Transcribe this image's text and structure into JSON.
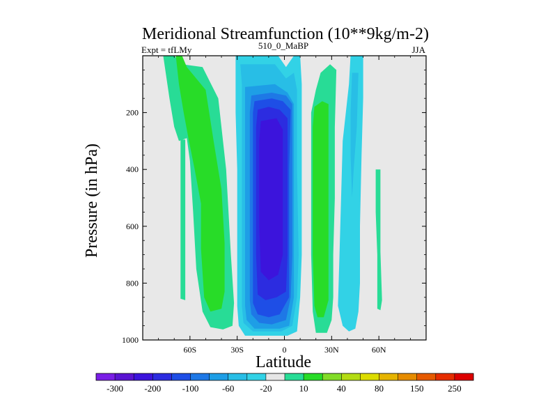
{
  "chart_data": {
    "type": "heatmap",
    "title": "Meridional Streamfunction (10**9kg/m-2)",
    "subtitle_left": "Expt = tfLMy",
    "subtitle_center": "510_0_MaBP",
    "subtitle_right": "JJA",
    "xlabel": "Latitude",
    "ylabel": "Pressure (in hPa)",
    "xlim": [
      -90,
      90
    ],
    "ylim": [
      0,
      1000
    ],
    "y_inverted": true,
    "x_ticks": [
      {
        "value": -60,
        "label": "60S"
      },
      {
        "value": -30,
        "label": "30S"
      },
      {
        "value": 0,
        "label": "0"
      },
      {
        "value": 30,
        "label": "30N"
      },
      {
        "value": 60,
        "label": "60N"
      }
    ],
    "y_ticks": [
      {
        "value": 200,
        "label": "200"
      },
      {
        "value": 400,
        "label": "400"
      },
      {
        "value": 600,
        "label": "600"
      },
      {
        "value": 800,
        "label": "800"
      },
      {
        "value": 1000,
        "label": "1000"
      }
    ],
    "background_color": "#e8e8e8",
    "colorbar": {
      "colors": [
        "#7a1ee6",
        "#5a14d2",
        "#3c14dc",
        "#2c2ce0",
        "#1e4ee6",
        "#1e78e6",
        "#1e9ee6",
        "#28bee6",
        "#32d2e6",
        "#e6e6e6",
        "#28dc96",
        "#28dc28",
        "#82dc28",
        "#b4dc14",
        "#dcdc00",
        "#e6b400",
        "#e68c00",
        "#e65a00",
        "#e62d00",
        "#dc0000"
      ],
      "labels": [
        "-300",
        "-200",
        "-100",
        "-60",
        "-20",
        "10",
        "40",
        "80",
        "150",
        "250"
      ]
    },
    "regions": [
      {
        "name": "southern-green-band-outer",
        "color": "#28dc96",
        "poly": [
          [
            -77,
            0
          ],
          [
            -70,
            0
          ],
          [
            -65,
            30
          ],
          [
            -52,
            40
          ],
          [
            -42,
            150
          ],
          [
            -37,
            400
          ],
          [
            -34,
            700
          ],
          [
            -32,
            870
          ],
          [
            -33,
            950
          ],
          [
            -39,
            963
          ],
          [
            -47,
            955
          ],
          [
            -52,
            900
          ],
          [
            -56,
            750
          ],
          [
            -58,
            550
          ],
          [
            -60,
            370
          ],
          [
            -62,
            290
          ],
          [
            -67,
            300
          ],
          [
            -70,
            250
          ],
          [
            -73,
            150
          ]
        ]
      },
      {
        "name": "southern-narrow-tongue",
        "color": "#28dc96",
        "poly": [
          [
            -66,
            295
          ],
          [
            -63,
            295
          ],
          [
            -63,
            860
          ],
          [
            -66,
            855
          ]
        ]
      },
      {
        "name": "southern-green-core",
        "color": "#28dc28",
        "poly": [
          [
            -69,
            0
          ],
          [
            -65,
            0
          ],
          [
            -62,
            40
          ],
          [
            -50,
            120
          ],
          [
            -45,
            300
          ],
          [
            -40,
            470
          ],
          [
            -38,
            660
          ],
          [
            -38,
            830
          ],
          [
            -40,
            890
          ],
          [
            -47,
            900
          ],
          [
            -51,
            850
          ],
          [
            -53,
            680
          ],
          [
            -53,
            520
          ],
          [
            -57,
            400
          ],
          [
            -61,
            290
          ],
          [
            -64,
            200
          ],
          [
            -67,
            100
          ]
        ]
      },
      {
        "name": "neg-cell-lvl-1",
        "color": "#32d2e6",
        "poly": [
          [
            -31,
            0
          ],
          [
            -4,
            0
          ],
          [
            1,
            40
          ],
          [
            6,
            0
          ],
          [
            10,
            0
          ],
          [
            11,
            100
          ],
          [
            11,
            400
          ],
          [
            11,
            700
          ],
          [
            10,
            850
          ],
          [
            8,
            970
          ],
          [
            2,
            985
          ],
          [
            -10,
            985
          ],
          [
            -25,
            985
          ],
          [
            -29,
            950
          ],
          [
            -30,
            880
          ],
          [
            -30,
            700
          ],
          [
            -30,
            400
          ],
          [
            -31,
            200
          ],
          [
            -31,
            80
          ]
        ]
      },
      {
        "name": "neg-cell-lvl-2",
        "color": "#28bee6",
        "poly": [
          [
            -28,
            30
          ],
          [
            -6,
            30
          ],
          [
            1,
            80
          ],
          [
            6,
            60
          ],
          [
            8,
            120
          ],
          [
            8,
            400
          ],
          [
            9,
            700
          ],
          [
            8,
            850
          ],
          [
            5,
            950
          ],
          [
            -2,
            970
          ],
          [
            -10,
            970
          ],
          [
            -20,
            970
          ],
          [
            -26,
            940
          ],
          [
            -27,
            880
          ],
          [
            -27,
            700
          ],
          [
            -27,
            400
          ],
          [
            -27,
            200
          ],
          [
            -27,
            100
          ]
        ]
      },
      {
        "name": "neg-cell-lvl-3",
        "color": "#1e9ee6",
        "poly": [
          [
            -25,
            110
          ],
          [
            -6,
            100
          ],
          [
            2,
            130
          ],
          [
            6,
            170
          ],
          [
            6,
            400
          ],
          [
            6,
            700
          ],
          [
            6,
            850
          ],
          [
            3,
            950
          ],
          [
            -3,
            960
          ],
          [
            -10,
            960
          ],
          [
            -19,
            960
          ],
          [
            -24,
            930
          ],
          [
            -25,
            880
          ],
          [
            -25,
            700
          ],
          [
            -25,
            400
          ],
          [
            -25,
            200
          ]
        ]
      },
      {
        "name": "neg-cell-lvl-4",
        "color": "#1e78e6",
        "poly": [
          [
            -21,
            140
          ],
          [
            -8,
            130
          ],
          [
            1,
            140
          ],
          [
            5,
            170
          ],
          [
            5,
            400
          ],
          [
            5,
            700
          ],
          [
            4,
            850
          ],
          [
            1,
            930
          ],
          [
            -8,
            945
          ],
          [
            -16,
            940
          ],
          [
            -21,
            910
          ],
          [
            -22,
            860
          ],
          [
            -22,
            700
          ],
          [
            -22,
            400
          ],
          [
            -22,
            200
          ]
        ]
      },
      {
        "name": "neg-cell-lvl-5",
        "color": "#1e4ee6",
        "poly": [
          [
            -19,
            160
          ],
          [
            -8,
            150
          ],
          [
            -1,
            160
          ],
          [
            4,
            190
          ],
          [
            3,
            400
          ],
          [
            3,
            700
          ],
          [
            3,
            850
          ],
          [
            -3,
            910
          ],
          [
            -10,
            920
          ],
          [
            -17,
            910
          ],
          [
            -20,
            870
          ],
          [
            -20,
            700
          ],
          [
            -20,
            400
          ],
          [
            -20,
            200
          ]
        ]
      },
      {
        "name": "neg-cell-lvl-6",
        "color": "#2c2ce0",
        "poly": [
          [
            -17,
            190
          ],
          [
            -10,
            180
          ],
          [
            -3,
            190
          ],
          [
            2,
            220
          ],
          [
            2,
            400
          ],
          [
            2,
            700
          ],
          [
            1,
            830
          ],
          [
            -5,
            850
          ],
          [
            -12,
            860
          ],
          [
            -17,
            840
          ],
          [
            -18,
            700
          ],
          [
            -18,
            400
          ],
          [
            -18,
            250
          ]
        ]
      },
      {
        "name": "neg-cell-lvl-7",
        "color": "#3c14dc",
        "poly": [
          [
            -15,
            230
          ],
          [
            -5,
            220
          ],
          [
            -1,
            260
          ],
          [
            -1,
            400
          ],
          [
            -1,
            700
          ],
          [
            -4,
            770
          ],
          [
            -10,
            790
          ],
          [
            -15,
            760
          ],
          [
            -16,
            600
          ],
          [
            -16,
            400
          ],
          [
            -16,
            300
          ]
        ]
      },
      {
        "name": "northern-green-outer",
        "color": "#28dc96",
        "poly": [
          [
            20,
            120
          ],
          [
            23,
            60
          ],
          [
            29,
            30
          ],
          [
            33,
            50
          ],
          [
            32,
            250
          ],
          [
            32,
            500
          ],
          [
            31,
            700
          ],
          [
            31,
            850
          ],
          [
            30,
            930
          ],
          [
            27,
            975
          ],
          [
            20,
            975
          ],
          [
            18,
            900
          ],
          [
            17,
            700
          ],
          [
            17,
            400
          ],
          [
            17,
            200
          ]
        ]
      },
      {
        "name": "northern-green-core",
        "color": "#28dc28",
        "poly": [
          [
            19,
            180
          ],
          [
            24,
            160
          ],
          [
            28,
            170
          ],
          [
            28,
            400
          ],
          [
            28,
            700
          ],
          [
            28,
            860
          ],
          [
            25,
            920
          ],
          [
            21,
            920
          ],
          [
            19,
            880
          ],
          [
            18,
            700
          ],
          [
            18,
            400
          ],
          [
            18,
            250
          ]
        ]
      },
      {
        "name": "northern-narrow-strip",
        "color": "#28dc96",
        "poly": [
          [
            58,
            400
          ],
          [
            61,
            400
          ],
          [
            61,
            690
          ],
          [
            62,
            860
          ],
          [
            61,
            895
          ],
          [
            59,
            890
          ],
          [
            59,
            700
          ],
          [
            58,
            550
          ]
        ]
      },
      {
        "name": "northern-blue-band",
        "color": "#32d2e6",
        "poly": [
          [
            42,
            0
          ],
          [
            50,
            0
          ],
          [
            50,
            150
          ],
          [
            49,
            350
          ],
          [
            48,
            600
          ],
          [
            48,
            800
          ],
          [
            47,
            900
          ],
          [
            45,
            960
          ],
          [
            41,
            970
          ],
          [
            37,
            950
          ],
          [
            34,
            880
          ],
          [
            35,
            700
          ],
          [
            36,
            500
          ],
          [
            37,
            300
          ],
          [
            39,
            200
          ],
          [
            41,
            100
          ]
        ]
      },
      {
        "name": "northern-blue-band-core",
        "color": "#28bee6",
        "poly": [
          [
            43,
            60
          ],
          [
            47,
            60
          ],
          [
            46,
            250
          ],
          [
            44,
            400
          ],
          [
            43,
            500
          ],
          [
            42,
            350
          ],
          [
            42,
            200
          ]
        ]
      }
    ]
  }
}
